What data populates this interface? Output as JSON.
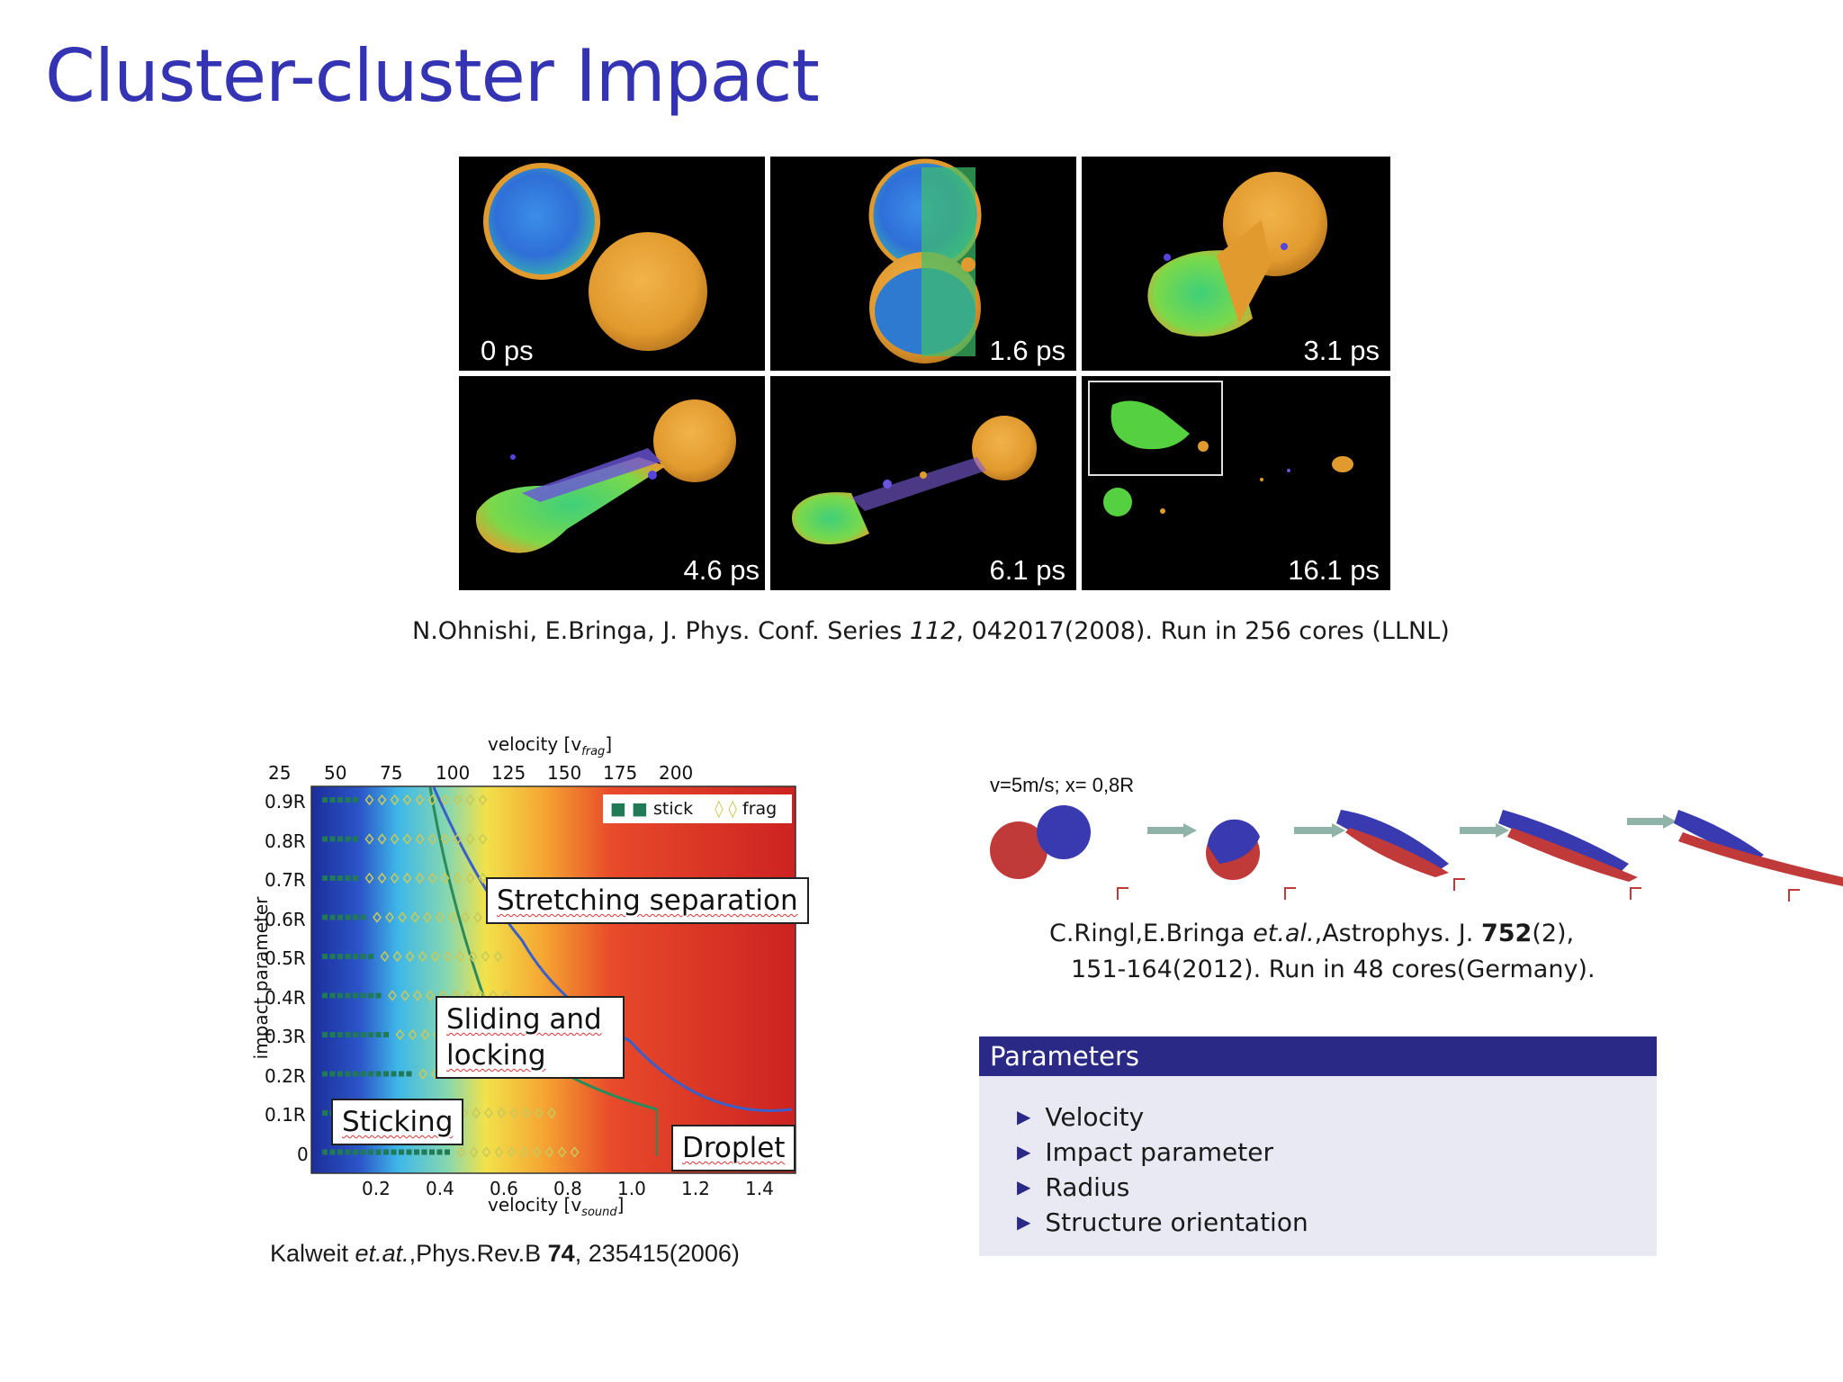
{
  "slide": {
    "title": "Cluster-cluster Impact"
  },
  "simulation": {
    "frames": [
      {
        "label": "0 ps"
      },
      {
        "label": "1.6 ps"
      },
      {
        "label": "3.1 ps"
      },
      {
        "label": "4.6 ps"
      },
      {
        "label": "6.1 ps"
      },
      {
        "label": "16.1 ps"
      }
    ],
    "caption": {
      "before": "N.Ohnishi, E.Bringa, J. Phys. Conf. Series ",
      "volume": "112",
      "after": ", 042017(2008). Run in 256 cores (LLNL)"
    }
  },
  "phase_diagram": {
    "top_axis_label": "velocity [v",
    "top_axis_sub": "frag",
    "top_ticks": [
      "25",
      "50",
      "75",
      "100",
      "125",
      "150",
      "175",
      "200"
    ],
    "bottom_axis_label": "velocity [v",
    "bottom_axis_sub": "sound",
    "bottom_ticks": [
      "0.2",
      "0.4",
      "0.6",
      "0.8",
      "1.0",
      "1.2",
      "1.4"
    ],
    "y_axis_label": "impact parameter",
    "y_ticks": [
      "0.9R",
      "0.8R",
      "0.7R",
      "0.6R",
      "0.5R",
      "0.4R",
      "0.3R",
      "0.2R",
      "0.1R",
      "0"
    ],
    "legend": {
      "stick": "stick",
      "frag": "frag"
    },
    "regions": {
      "stretching": "Stretching separation",
      "sliding_1": "Sliding and",
      "sliding_2": "locking",
      "sticking": "Sticking",
      "droplet": "Droplet"
    },
    "caption": {
      "author": "Kalweit ",
      "etal": "et.at.",
      "journal": ",Phys.Rev.B ",
      "volume": "74",
      "rest": ", 235415(2006)"
    }
  },
  "ringl": {
    "label": "v=5m/s; x= 0,8R",
    "caption_line1_a": "C.Ringl,E.Bringa ",
    "caption_line1_etal": "et.al.",
    "caption_line1_b": ",Astrophys. J. ",
    "caption_line1_vol": "752",
    "caption_line1_c": "(2),",
    "caption_line2": "151-164(2012). Run in 48 cores(Germany)."
  },
  "parameters": {
    "heading": "Parameters",
    "items": [
      "Velocity",
      "Impact parameter",
      "Radius",
      "Structure orientation"
    ]
  },
  "colors": {
    "title": "#3333b3",
    "block_header": "#2a2a86",
    "block_body": "#e9e9f4",
    "stick_marker": "#1f7a55",
    "frag_marker": "#c9c95a"
  }
}
